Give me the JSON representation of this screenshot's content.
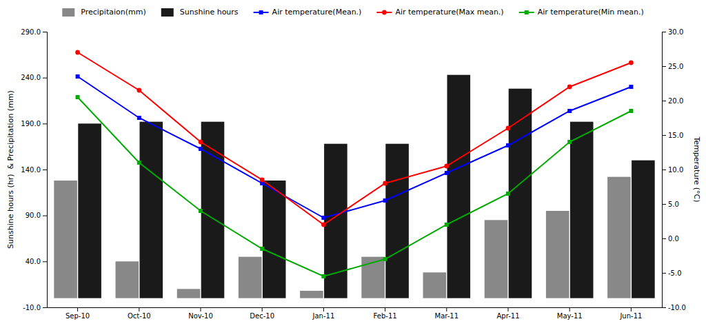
{
  "chart_data": {
    "type": "bar",
    "categories": [
      "Sep-10",
      "Oct-10",
      "Nov-10",
      "Dec-10",
      "Jan-11",
      "Feb-11",
      "Mar-11",
      "Apr-11",
      "May-11",
      "Jun-11"
    ],
    "series": [
      {
        "name": "Precipitaion(mm)",
        "type": "bar",
        "color": "#888888",
        "values": [
          128,
          40,
          10,
          45,
          8,
          45,
          28,
          85,
          95,
          132
        ]
      },
      {
        "name": "Sunshine hours",
        "type": "bar",
        "color": "#1a1a1a",
        "values": [
          190,
          192,
          192,
          128,
          168,
          168,
          243,
          228,
          192,
          150
        ]
      },
      {
        "name": "Air temperature(Mean.)",
        "type": "line",
        "axis": "y2",
        "color": "#0000ff",
        "marker": "square",
        "values": [
          23.5,
          17.5,
          13.0,
          8.0,
          3.0,
          5.5,
          9.5,
          13.5,
          18.5,
          22.0
        ]
      },
      {
        "name": "Air temperature(Max mean.)",
        "type": "line",
        "axis": "y2",
        "color": "#ff0000",
        "marker": "circle",
        "values": [
          27.0,
          21.5,
          14.0,
          8.5,
          2.0,
          8.0,
          10.5,
          16.0,
          22.0,
          25.5
        ]
      },
      {
        "name": "Air temperature(Min mean.)",
        "type": "line",
        "axis": "y2",
        "color": "#00aa00",
        "marker": "square",
        "values": [
          20.5,
          11.0,
          4.0,
          -1.5,
          -5.5,
          -3.0,
          2.0,
          6.5,
          14.0,
          18.5
        ]
      }
    ],
    "ylabel": "Sunshine hours (hr)  & Precipitation (mm)",
    "y2label": "Temperature (°C)",
    "ylim": [
      -10,
      290
    ],
    "yticks": [
      {
        "value": -10,
        "label": "-10.0"
      },
      {
        "value": 40,
        "label": "40.0"
      },
      {
        "value": 90,
        "label": "90.0"
      },
      {
        "value": 140,
        "label": "140.0"
      },
      {
        "value": 190,
        "label": "190.0"
      },
      {
        "value": 240,
        "label": "240.0"
      },
      {
        "value": 290,
        "label": "290.0"
      }
    ],
    "y2lim": [
      -10,
      30
    ],
    "y2ticks": [
      {
        "value": -10,
        "label": "-10.0"
      },
      {
        "value": -5,
        "label": "-5.0"
      },
      {
        "value": 0,
        "label": "0.0"
      },
      {
        "value": 5,
        "label": "5.0"
      },
      {
        "value": 10,
        "label": "10.0"
      },
      {
        "value": 15,
        "label": "15.0"
      },
      {
        "value": 20,
        "label": "20.0"
      },
      {
        "value": 25,
        "label": "25.0"
      },
      {
        "value": 30,
        "label": "30.0"
      }
    ],
    "grid": false,
    "legend": "top"
  }
}
